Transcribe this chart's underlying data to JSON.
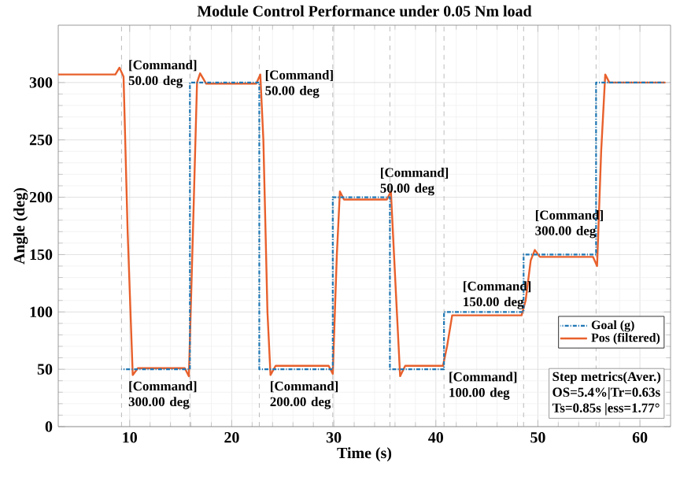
{
  "chart_data": {
    "type": "line",
    "title": "Module Control Performance under 0.05 Nm load",
    "xlabel": "Time (s)",
    "ylabel": "Angle (deg)",
    "xlim": [
      3,
      63
    ],
    "ylim": [
      0,
      350
    ],
    "xticks": [
      10,
      20,
      30,
      40,
      50,
      60
    ],
    "yticks": [
      0,
      50,
      100,
      150,
      200,
      250,
      300
    ],
    "grid": true,
    "legend": "bottom right",
    "series": [
      {
        "name": "Goal (g)",
        "color": "#1f77b4",
        "type": "step",
        "line_style": "dashed",
        "x": [
          9.2,
          15.9,
          22.7,
          29.9,
          35.5,
          40.8,
          48.6,
          55.7,
          62.5
        ],
        "values": [
          50,
          300,
          50,
          200,
          50,
          100,
          150,
          300,
          300
        ]
      },
      {
        "name": "Pos (filtered)",
        "color": "#e8602c",
        "line_style": "solid",
        "x": [
          3,
          8.6,
          9.0,
          9.4,
          9.8,
          10.3,
          10.8,
          11.2,
          15.4,
          15.8,
          16.2,
          16.6,
          16.9,
          17.5,
          22.4,
          22.8,
          23.1,
          23.5,
          23.8,
          24.3,
          29.5,
          29.9,
          30.3,
          30.6,
          31.0,
          35.2,
          35.6,
          35.9,
          36.5,
          37.0,
          40.7,
          41.1,
          41.6,
          42.0,
          48.4,
          48.8,
          49.3,
          49.7,
          50.2,
          55.4,
          55.8,
          56.2,
          56.6,
          57.0,
          62.5
        ],
        "values": [
          307,
          307,
          313,
          305,
          170,
          45,
          51,
          51,
          51,
          44,
          170,
          300,
          308,
          299,
          299,
          307,
          250,
          100,
          45,
          53,
          53,
          46,
          150,
          205,
          198,
          198,
          205,
          150,
          44,
          53,
          53,
          70,
          97,
          97,
          97,
          110,
          145,
          154,
          148,
          148,
          140,
          240,
          307,
          300,
          300
        ]
      }
    ],
    "ref_lines": [
      {
        "axis": "x",
        "value": 9.2,
        "color": "#aaaaaa",
        "line_style": "dashed"
      },
      {
        "axis": "x",
        "value": 15.9,
        "color": "#aaaaaa",
        "line_style": "dashed"
      },
      {
        "axis": "x",
        "value": 22.7,
        "color": "#aaaaaa",
        "line_style": "dashed"
      },
      {
        "axis": "x",
        "value": 29.9,
        "color": "#aaaaaa",
        "line_style": "dashed"
      },
      {
        "axis": "x",
        "value": 35.5,
        "color": "#aaaaaa",
        "line_style": "dashed"
      },
      {
        "axis": "x",
        "value": 40.8,
        "color": "#aaaaaa",
        "line_style": "dashed"
      },
      {
        "axis": "x",
        "value": 48.6,
        "color": "#aaaaaa",
        "line_style": "dashed"
      },
      {
        "axis": "x",
        "value": 55.7,
        "color": "#aaaaaa",
        "line_style": "dashed"
      }
    ],
    "annotations": [
      "[Command] 50.00 deg",
      "[Command] 50.00 deg",
      "[Command] 50.00 deg",
      "[Command] 300.00 deg",
      "[Command] 300.00 deg",
      "[Command] 200.00 deg",
      "[Command] 100.00 deg",
      "[Command] 150.00 deg",
      "Step metrics(Aver.)",
      "OS=5.4%|Tr=0.63s",
      "Ts=0.85s |ess=1.77°"
    ]
  }
}
